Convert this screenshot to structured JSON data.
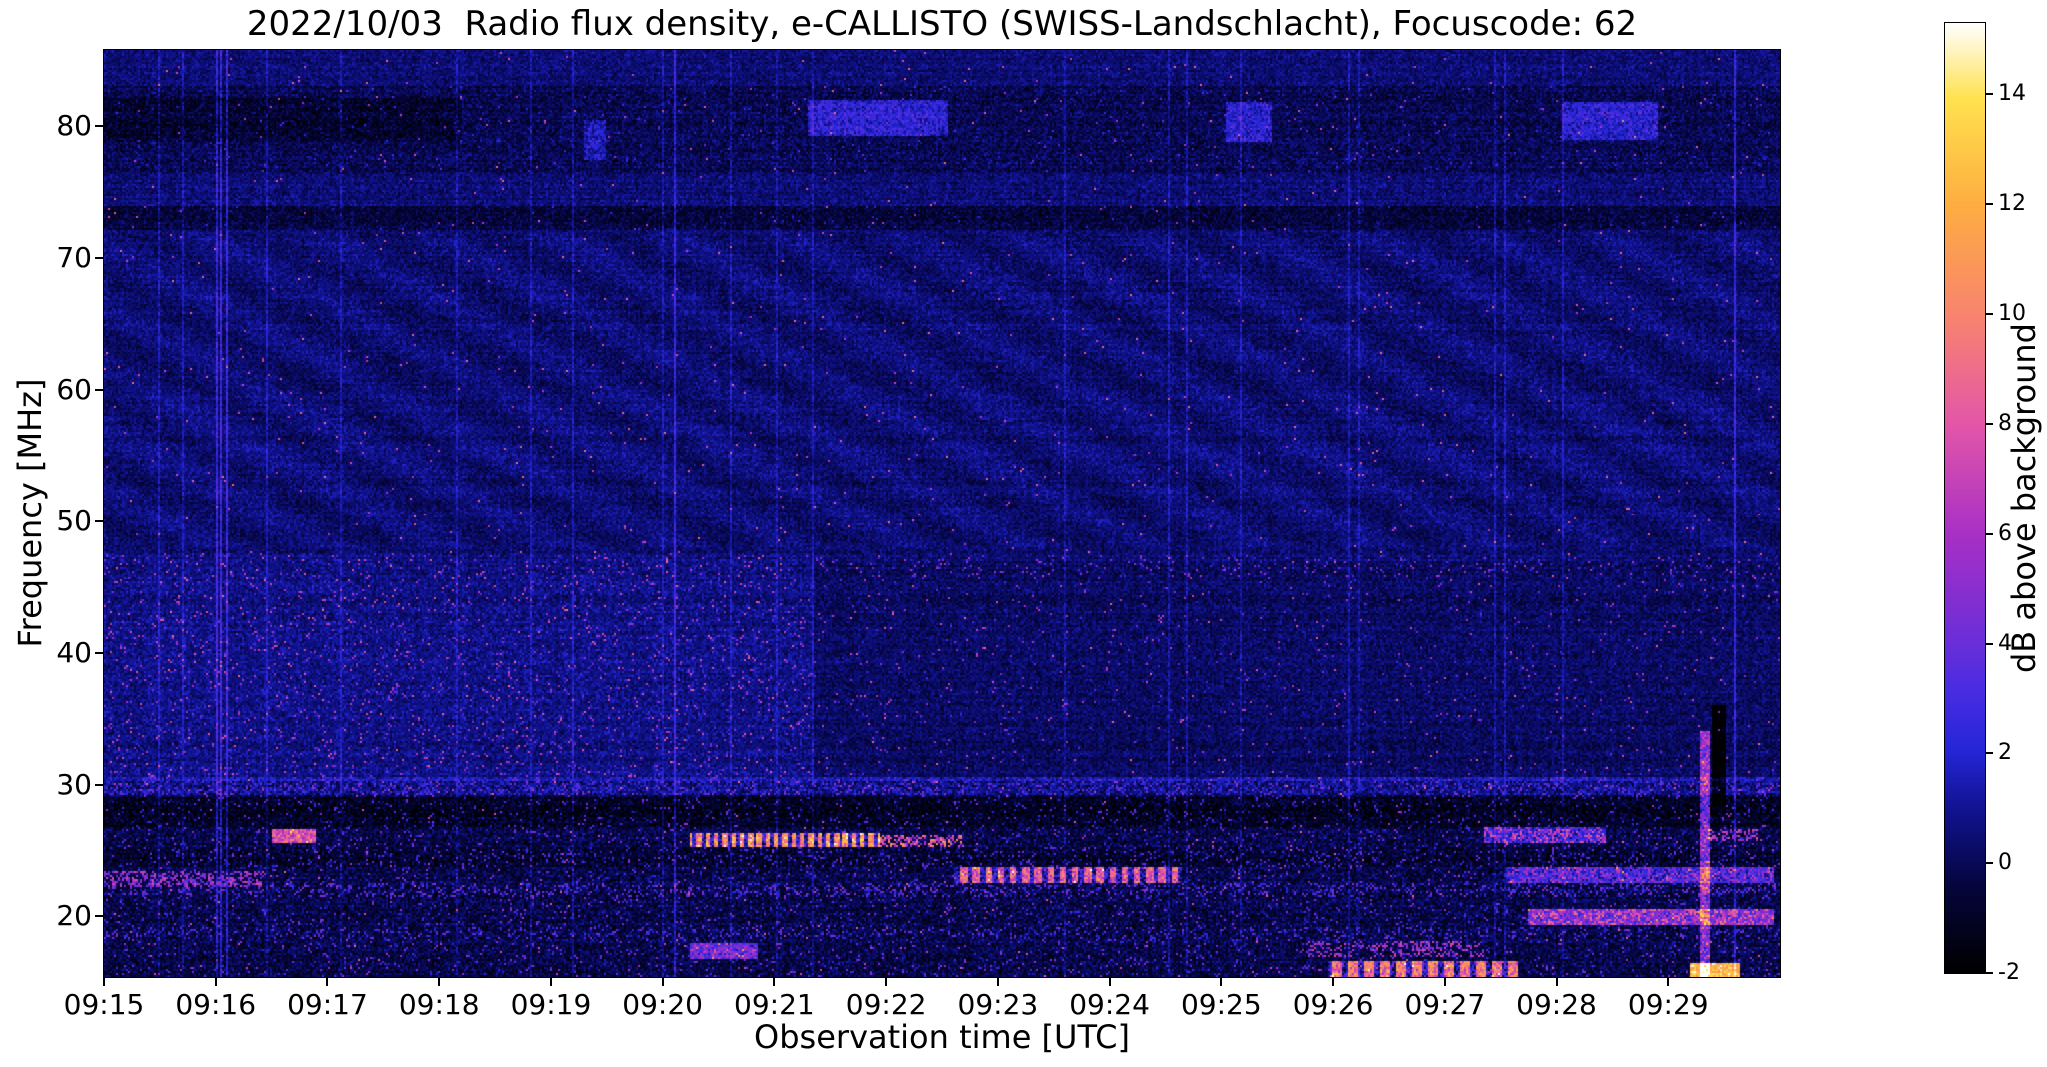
{
  "chart_data": {
    "type": "heatmap",
    "title": "2022/10/03  Radio flux density, e-CALLISTO (SWISS-Landschlacht), Focuscode: 62",
    "xlabel": "Observation time [UTC]",
    "ylabel": "Frequency [MHz]",
    "x_tick_labels": [
      "09:15",
      "09:16",
      "09:17",
      "09:18",
      "09:19",
      "09:20",
      "09:21",
      "09:22",
      "09:23",
      "09:24",
      "09:25",
      "09:26",
      "09:27",
      "09:28",
      "09:29"
    ],
    "x_range_min": [
      0,
      15
    ],
    "y_tick_values": [
      20,
      30,
      40,
      50,
      60,
      70,
      80
    ],
    "y_range_mhz": [
      15.4,
      85.8
    ],
    "color_range_db": [
      -2,
      15.3
    ],
    "colorbar_label": "dB above background",
    "colorbar_ticks": [
      -2,
      0,
      2,
      4,
      6,
      8,
      10,
      12,
      14
    ],
    "colormap_stops": [
      [
        0.0,
        "#000000"
      ],
      [
        0.09,
        "#05053c"
      ],
      [
        0.17,
        "#10128f"
      ],
      [
        0.235,
        "#2526d8"
      ],
      [
        0.3,
        "#4b2ce2"
      ],
      [
        0.35,
        "#6c2ed8"
      ],
      [
        0.46,
        "#a72fc6"
      ],
      [
        0.58,
        "#e457a8"
      ],
      [
        0.69,
        "#f8836f"
      ],
      [
        0.81,
        "#feae41"
      ],
      [
        0.92,
        "#ffe14e"
      ],
      [
        1.0,
        "#ffffff"
      ]
    ],
    "noise": {
      "seed": 42,
      "base_db": 0.45,
      "sigma": 0.75,
      "row_jitter": 0.5,
      "col_jitter": 0.25,
      "col_streak_p": 0.035,
      "col_streak_db": 1.1,
      "hot_pixel_p": 0.0038,
      "hot_pixel_db": 6.0,
      "ripple": {
        "f": [
          48,
          72
        ],
        "amp": 0.32,
        "tf": 6.0,
        "ff": 1.35
      }
    },
    "features": [
      {
        "name": "high-band-dark",
        "t": [
          0,
          15
        ],
        "f": [
          76.5,
          83.0
        ],
        "add": -0.5,
        "jit": 0.6,
        "p": 0.01,
        "spk": 2.5,
        "sjit": 1.5
      },
      {
        "name": "high-band-dark-left",
        "t": [
          0,
          3.2
        ],
        "f": [
          78.8,
          82.2
        ],
        "add": -0.7,
        "jit": 0.4
      },
      {
        "name": "high-band-blue-1",
        "t": [
          6.3,
          7.55
        ],
        "f": [
          79.3,
          82.0
        ],
        "add": 2.3,
        "jit": 0.8
      },
      {
        "name": "high-band-blue-2",
        "t": [
          10.05,
          10.45
        ],
        "f": [
          78.8,
          81.8
        ],
        "add": 2.2,
        "jit": 0.8
      },
      {
        "name": "high-band-blue-3",
        "t": [
          13.05,
          13.9
        ],
        "f": [
          79.0,
          81.9
        ],
        "add": 2.2,
        "jit": 0.8
      },
      {
        "name": "high-band-blue-sm",
        "t": [
          4.3,
          4.5
        ],
        "f": [
          77.5,
          80.5
        ],
        "add": 1.6,
        "jit": 0.6
      },
      {
        "name": "dark-line-73",
        "t": [
          0,
          15
        ],
        "f": [
          72.2,
          73.9
        ],
        "add": -1.0,
        "jit": 0.5,
        "p": 0.012,
        "spk": 1.8,
        "sjit": 1.2
      },
      {
        "name": "mid-speckle-left",
        "t": [
          0,
          6.35
        ],
        "f": [
          30.6,
          47.6
        ],
        "add": 0.25,
        "jit": 0.3,
        "p": 0.05,
        "spk": 4.5,
        "sjit": 3.5
      },
      {
        "name": "mid-right-dark",
        "t": [
          6.35,
          15
        ],
        "f": [
          30.6,
          47.0
        ],
        "add": -0.3,
        "jit": 0.2,
        "p": 0.013,
        "spk": 4.0,
        "sjit": 3.0
      },
      {
        "name": "speckle-line-47",
        "t": [
          6.35,
          15
        ],
        "f": [
          45.7,
          47.4
        ],
        "p": 0.05,
        "spk": 4.0,
        "sjit": 2.5
      },
      {
        "name": "low-band-dark",
        "t": [
          0,
          15
        ],
        "f": [
          15.4,
          30.2
        ],
        "add": -0.75,
        "jit": 0.8,
        "p": 0.06,
        "spk": 2.8,
        "sjit": 2.6
      },
      {
        "name": "dark-gap-28",
        "t": [
          0,
          15
        ],
        "f": [
          26.8,
          29.1
        ],
        "add": -0.8,
        "jit": 0.3
      },
      {
        "name": "dark-gap-24",
        "t": [
          0,
          15
        ],
        "f": [
          23.8,
          25.2
        ],
        "add": -0.5,
        "jit": 0.3,
        "p": 0.05,
        "spk": 3.0,
        "sjit": 1.5
      },
      {
        "name": "line-30",
        "t": [
          0,
          15
        ],
        "f": [
          29.2,
          30.6
        ],
        "add": 1.1,
        "jit": 0.7,
        "p": 0.1,
        "spk": 3.2,
        "sjit": 1.6
      },
      {
        "name": "band-19",
        "t": [
          0,
          15
        ],
        "f": [
          18.3,
          19.2
        ],
        "p": 0.1,
        "spk": 3.0,
        "sjit": 1.5
      },
      {
        "name": "blob-26-early",
        "t": [
          1.5,
          1.9
        ],
        "f": [
          25.5,
          26.7
        ],
        "add": 8.0,
        "jit": 2.0
      },
      {
        "name": "burst-26",
        "t": [
          5.25,
          6.95
        ],
        "f": [
          25.3,
          26.4
        ],
        "add": 11.0,
        "jit": 2.5,
        "dash": 13
      },
      {
        "name": "burst-26-tail",
        "t": [
          6.95,
          7.7
        ],
        "f": [
          25.2,
          26.2
        ],
        "p": 0.45,
        "spk": 8.0,
        "sjit": 3.0
      },
      {
        "name": "burst-23",
        "t": [
          7.6,
          9.65
        ],
        "f": [
          22.6,
          23.7
        ],
        "add": 8.5,
        "jit": 2.2,
        "dash": 9
      },
      {
        "name": "band-23-left",
        "t": [
          0,
          1.45
        ],
        "f": [
          22.2,
          23.5
        ],
        "p": 0.4,
        "spk": 5.5,
        "sjit": 2.0
      },
      {
        "name": "band-22",
        "t": [
          0,
          15
        ],
        "f": [
          21.4,
          22.6
        ],
        "p": 0.16,
        "spk": 3.3,
        "sjit": 1.8
      },
      {
        "name": "band-26-right",
        "t": [
          12.35,
          13.45
        ],
        "f": [
          25.6,
          26.8
        ],
        "add": 2.5,
        "jit": 1.0,
        "p": 0.35,
        "spk": 6.5,
        "sjit": 2.0
      },
      {
        "name": "dots-26-right2",
        "t": [
          14.35,
          14.8
        ],
        "f": [
          25.7,
          26.6
        ],
        "p": 0.4,
        "spk": 6.0,
        "sjit": 2.0
      },
      {
        "name": "band-20-right",
        "t": [
          12.75,
          14.95
        ],
        "f": [
          19.4,
          20.6
        ],
        "add": 4.5,
        "jit": 1.8,
        "p": 0.3,
        "spk": 7.5,
        "sjit": 2.0
      },
      {
        "name": "band-23-right",
        "t": [
          12.55,
          14.95
        ],
        "f": [
          22.6,
          23.7
        ],
        "add": 3.0,
        "jit": 1.4,
        "p": 0.25,
        "spk": 5.5,
        "sjit": 1.5
      },
      {
        "name": "blob-17",
        "t": [
          5.25,
          5.85
        ],
        "f": [
          16.7,
          18.0
        ],
        "add": 4.5,
        "jit": 1.8
      },
      {
        "name": "dash-17-right",
        "t": [
          10.75,
          12.35
        ],
        "f": [
          16.9,
          18.2
        ],
        "p": 0.32,
        "spk": 5.5,
        "sjit": 2.0
      },
      {
        "name": "bottom-burst-16",
        "t": [
          10.95,
          12.65
        ],
        "f": [
          15.4,
          16.6
        ],
        "add": 9.5,
        "jit": 2.5,
        "dash": 7
      },
      {
        "name": "bottom-white-16",
        "t": [
          14.2,
          14.65
        ],
        "f": [
          15.4,
          16.4
        ],
        "add": 12.5,
        "jit": 1.5
      },
      {
        "name": "spike-col-bright",
        "t": [
          14.28,
          14.37
        ],
        "f": [
          15.4,
          34.0
        ],
        "add": 5.0,
        "jit": 2.5
      },
      {
        "name": "spike-col-dark",
        "t": [
          14.4,
          14.52
        ],
        "f": [
          28.5,
          36.0
        ],
        "add": -2.5,
        "jit": 0.3
      }
    ]
  }
}
